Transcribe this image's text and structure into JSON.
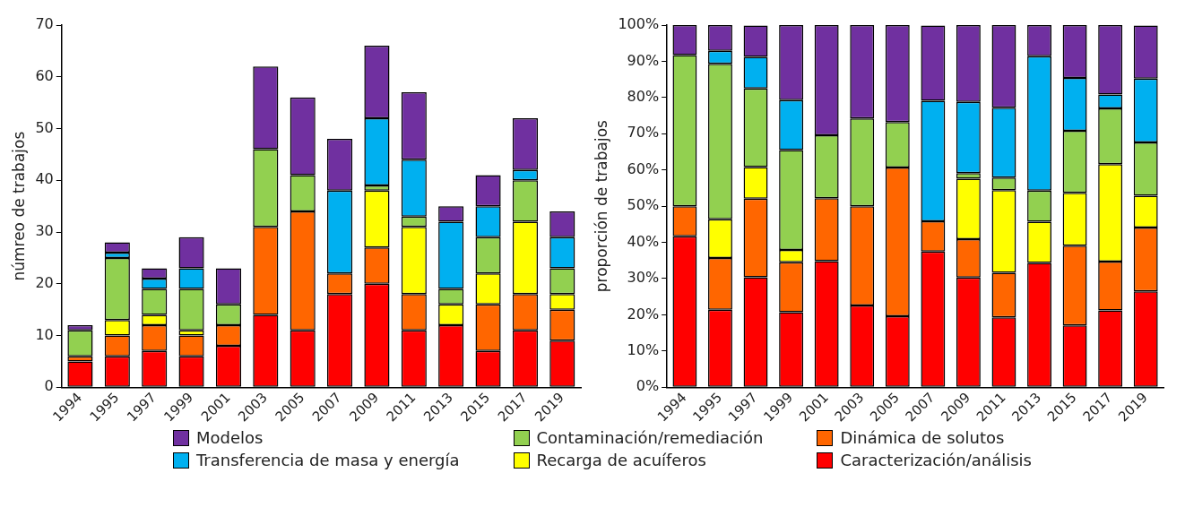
{
  "chart_data": [
    {
      "type": "bar",
      "stacked": true,
      "ylabel": "númreo de trabajos",
      "legend": "bottom",
      "grid": false,
      "categories": [
        "1994",
        "1995",
        "1997",
        "1999",
        "2001",
        "2003",
        "2005",
        "2007",
        "2009",
        "2011",
        "2013",
        "2015",
        "2017",
        "2019"
      ],
      "ylim": [
        0,
        70
      ],
      "yticks": [
        0,
        10,
        20,
        30,
        40,
        50,
        60,
        70
      ],
      "series": [
        {
          "name": "Caracterización/análisis",
          "color": "#ff0000",
          "values": [
            5,
            6,
            7,
            6,
            8,
            14,
            11,
            18,
            20,
            11,
            12,
            7,
            11,
            9
          ]
        },
        {
          "name": "Dinámica de solutos",
          "color": "#ff6600",
          "values": [
            1,
            4,
            5,
            4,
            4,
            17,
            23,
            4,
            7,
            7,
            0,
            9,
            7,
            6
          ]
        },
        {
          "name": "Recarga de acuíferos",
          "color": "#ffff00",
          "values": [
            0,
            3,
            2,
            1,
            0,
            0,
            0,
            0,
            11,
            13,
            4,
            6,
            14,
            3
          ]
        },
        {
          "name": "Contaminación/remediación",
          "color": "#92d050",
          "values": [
            5,
            12,
            5,
            8,
            4,
            15,
            7,
            0,
            1,
            2,
            3,
            7,
            8,
            5
          ]
        },
        {
          "name": "Transferencia de masa y energía",
          "color": "#00b0f0",
          "values": [
            0,
            1,
            2,
            4,
            0,
            0,
            0,
            16,
            13,
            11,
            13,
            6,
            2,
            6
          ]
        },
        {
          "name": "Modelos",
          "color": "#7030a0",
          "values": [
            1,
            2,
            2,
            6,
            7,
            16,
            15,
            10,
            14,
            13,
            3,
            6,
            10,
            5
          ]
        }
      ]
    },
    {
      "type": "bar",
      "stacked": true,
      "ylabel": "proporción de trabajos",
      "grid": false,
      "categories": [
        "1994",
        "1995",
        "1997",
        "1999",
        "2001",
        "2003",
        "2005",
        "2007",
        "2009",
        "2011",
        "2013",
        "2015",
        "2017",
        "2019"
      ],
      "ylim": [
        0,
        100
      ],
      "yticks": [
        {
          "value": 0,
          "label": "0%"
        },
        {
          "value": 10,
          "label": "10%"
        },
        {
          "value": 20,
          "label": "20%"
        },
        {
          "value": 30,
          "label": "30%"
        },
        {
          "value": 40,
          "label": "40%"
        },
        {
          "value": 50,
          "label": "50%"
        },
        {
          "value": 60,
          "label": "60%"
        },
        {
          "value": 70,
          "label": "70%"
        },
        {
          "value": 80,
          "label": "80%"
        },
        {
          "value": 90,
          "label": "90%"
        },
        {
          "value": 100,
          "label": "100%"
        }
      ],
      "series": [
        {
          "color": "#ff0000",
          "values": [
            41.7,
            21.4,
            30.4,
            20.7,
            34.8,
            22.6,
            19.6,
            37.5,
            30.3,
            19.3,
            34.3,
            17.1,
            21.2,
            26.5
          ]
        },
        {
          "color": "#ff6600",
          "values": [
            8.3,
            14.3,
            21.7,
            13.8,
            17.4,
            27.4,
            41.1,
            8.3,
            10.6,
            12.3,
            0,
            22.0,
            13.5,
            17.6
          ]
        },
        {
          "color": "#ffff00",
          "values": [
            0,
            10.7,
            8.7,
            3.4,
            0,
            0,
            0,
            0,
            16.7,
            22.8,
            11.4,
            14.6,
            26.9,
            8.8
          ]
        },
        {
          "color": "#92d050",
          "values": [
            41.7,
            42.9,
            21.7,
            27.6,
            17.4,
            24.2,
            12.5,
            0,
            1.5,
            3.5,
            8.6,
            17.1,
            15.4,
            14.7
          ]
        },
        {
          "color": "#00b0f0",
          "values": [
            0,
            3.6,
            8.7,
            13.8,
            0,
            0,
            0,
            33.3,
            19.7,
            19.3,
            37.1,
            14.6,
            3.8,
            17.6
          ]
        },
        {
          "color": "#7030a0",
          "values": [
            8.3,
            7.1,
            8.7,
            20.7,
            30.4,
            25.8,
            26.8,
            20.8,
            21.2,
            22.8,
            8.6,
            14.6,
            19.2,
            14.7
          ]
        }
      ]
    }
  ]
}
